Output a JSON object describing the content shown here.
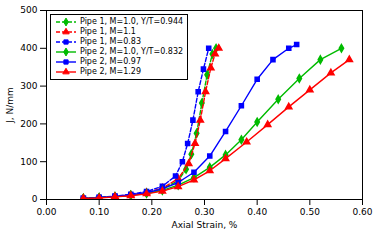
{
  "chart_data": {
    "type": "line",
    "title": "",
    "xlabel": "Axial Strain, %",
    "ylabel": "J, N/mm",
    "xlim": [
      0.0,
      0.6
    ],
    "ylim": [
      0,
      500
    ],
    "xticks": [
      {
        "value": 0.0,
        "label": "0.00"
      },
      {
        "value": 0.1,
        "label": "0.10"
      },
      {
        "value": 0.2,
        "label": "0.20"
      },
      {
        "value": 0.3,
        "label": "0.30"
      },
      {
        "value": 0.4,
        "label": "0.40"
      },
      {
        "value": 0.5,
        "label": "0.50"
      },
      {
        "value": 0.6,
        "label": "0.60"
      }
    ],
    "yticks": [
      0,
      100,
      200,
      300,
      400,
      500
    ],
    "grid": false,
    "legend": "upper left",
    "series": [
      {
        "name": "Pipe 1, M=1.0, Y/T=0.944",
        "color": "#00bb00",
        "line_style": "dashed",
        "marker": "diamond",
        "x": [
          0.07,
          0.1,
          0.13,
          0.16,
          0.19,
          0.22,
          0.25,
          0.265,
          0.275,
          0.285,
          0.295,
          0.305,
          0.315,
          0.322
        ],
        "values": [
          3,
          5,
          8,
          12,
          18,
          28,
          50,
          80,
          120,
          175,
          255,
          330,
          385,
          400
        ]
      },
      {
        "name": "Pipe 1, M=1.1",
        "color": "#ff0000",
        "line_style": "dashed",
        "marker": "triangle",
        "x": [
          0.07,
          0.1,
          0.13,
          0.16,
          0.19,
          0.22,
          0.25,
          0.27,
          0.282,
          0.292,
          0.302,
          0.312,
          0.32,
          0.327
        ],
        "values": [
          3,
          5,
          8,
          12,
          18,
          30,
          55,
          95,
          148,
          210,
          285,
          348,
          385,
          400
        ]
      },
      {
        "name": "Pipe 1, M=0.83",
        "color": "#0000ff",
        "line_style": "dashed",
        "marker": "square",
        "x": [
          0.07,
          0.1,
          0.13,
          0.16,
          0.19,
          0.22,
          0.245,
          0.258,
          0.268,
          0.278,
          0.288,
          0.298,
          0.308
        ],
        "values": [
          3,
          6,
          9,
          14,
          21,
          35,
          62,
          100,
          148,
          210,
          285,
          345,
          400
        ]
      },
      {
        "name": "Pipe 2, M=1.0, Y/T=0.832",
        "color": "#00bb00",
        "line_style": "solid",
        "marker": "diamond",
        "x": [
          0.07,
          0.1,
          0.13,
          0.16,
          0.19,
          0.22,
          0.25,
          0.28,
          0.31,
          0.34,
          0.37,
          0.4,
          0.44,
          0.48,
          0.52,
          0.56
        ],
        "values": [
          3,
          5,
          7,
          11,
          16,
          24,
          38,
          58,
          85,
          118,
          158,
          205,
          265,
          320,
          370,
          400
        ]
      },
      {
        "name": "Pipe 2, M=0.97",
        "color": "#0000ff",
        "line_style": "solid",
        "marker": "square",
        "x": [
          0.07,
          0.1,
          0.13,
          0.16,
          0.19,
          0.22,
          0.25,
          0.28,
          0.31,
          0.34,
          0.37,
          0.4,
          0.43,
          0.46,
          0.475
        ],
        "values": [
          3,
          5,
          8,
          12,
          18,
          28,
          45,
          72,
          115,
          180,
          248,
          318,
          370,
          400,
          410
        ]
      },
      {
        "name": "Pipe 2, M=1.29",
        "color": "#ff0000",
        "line_style": "solid",
        "marker": "triangle",
        "x": [
          0.07,
          0.1,
          0.13,
          0.16,
          0.19,
          0.22,
          0.25,
          0.28,
          0.31,
          0.34,
          0.38,
          0.42,
          0.46,
          0.5,
          0.54,
          0.575
        ],
        "values": [
          3,
          4,
          7,
          10,
          15,
          22,
          34,
          52,
          76,
          108,
          152,
          198,
          245,
          290,
          335,
          370
        ]
      }
    ]
  }
}
